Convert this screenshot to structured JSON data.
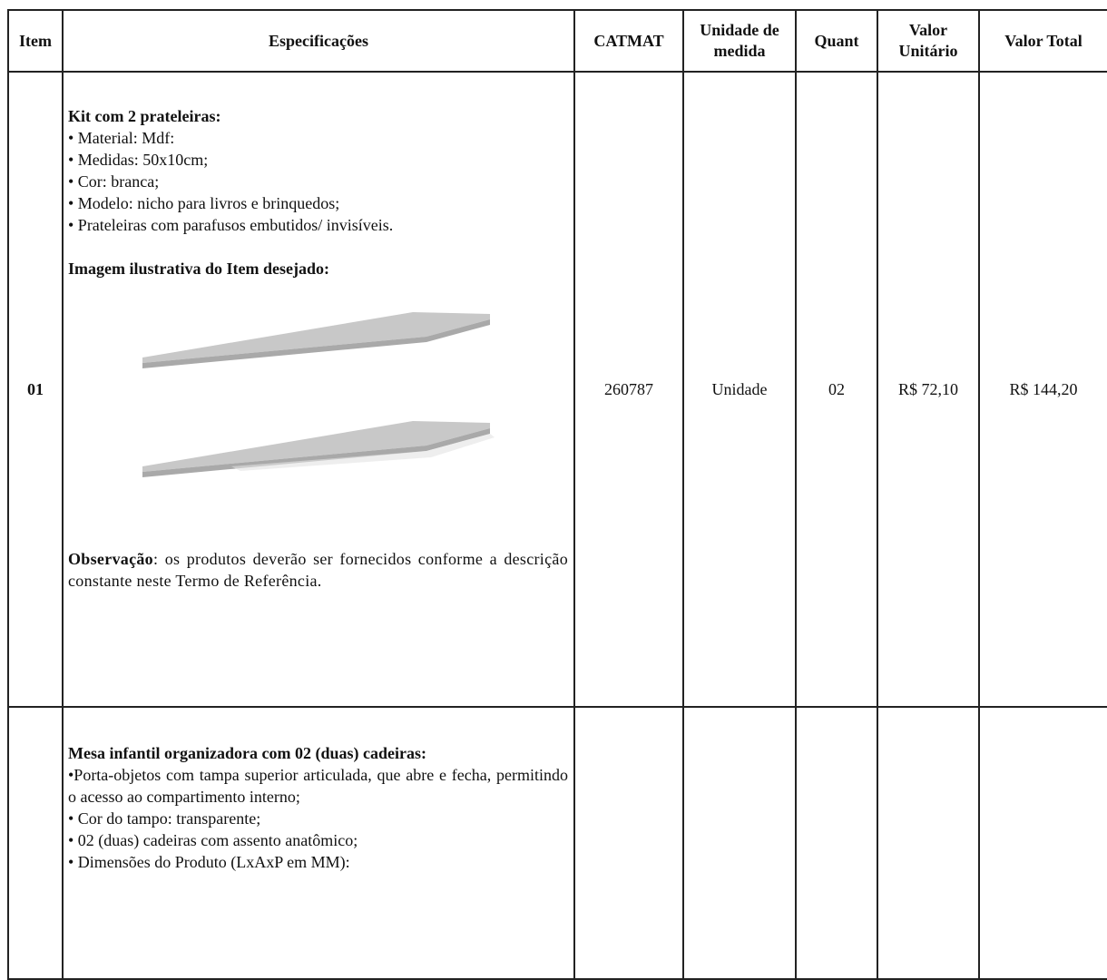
{
  "table": {
    "headers": [
      "Item",
      "Especificações",
      "CATMAT",
      "Unidade de medida",
      "Quant",
      "Valor Unitário",
      "Valor Total"
    ],
    "rows": [
      {
        "item": "01",
        "spec_title": "Kit com 2 prateleiras:",
        "spec_bullets": [
          "• Material: Mdf:",
          "• Medidas: 50x10cm;",
          "• Cor: branca;",
          "• Modelo: nicho para livros e brinquedos;",
          "• Prateleiras com parafusos embutidos/ invisíveis."
        ],
        "image_caption": "Imagem ilustrativa do Item desejado:",
        "observation_label": "Observação",
        "observation_text": ": os produtos deverão ser fornecidos conforme a descrição constante neste Termo de Referência.",
        "catmat": "260787",
        "unit": "Unidade",
        "quantity": "02",
        "unit_value": "R$ 72,10",
        "total_value": "R$ 144,20"
      },
      {
        "spec_title": "Mesa infantil organizadora com 02 (duas) cadeiras:",
        "spec_bullets": [
          "•Porta-objetos com tampa superior articulada, que abre e fecha, permitindo o acesso ao compartimento interno;",
          "• Cor do tampo: transparente;",
          "• 02 (duas) cadeiras com assento anatômico;",
          "• Dimensões do Produto (LxAxP em MM):"
        ]
      }
    ]
  }
}
